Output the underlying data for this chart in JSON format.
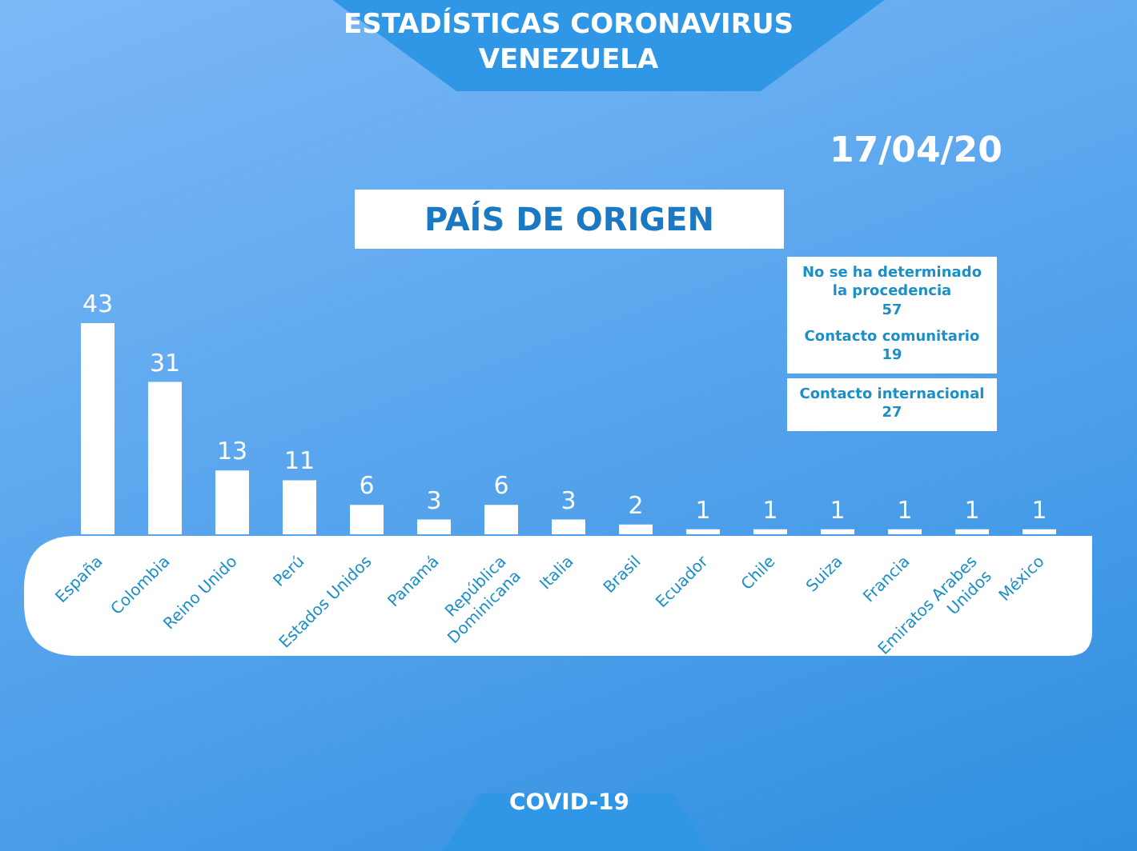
{
  "chart_data": {
    "type": "bar",
    "title": "ESTADÍSTICAS CORONAVIRUS\nVENEZUELA",
    "subtitle": "PAÍS DE ORIGEN",
    "categories": [
      "España",
      "Colombia",
      "Reino Unido",
      "Perú",
      "Estados Unidos",
      "Panamá",
      "República Dominicana",
      "Italia",
      "Brasil",
      "Ecuador",
      "Chile",
      "Suiza",
      "Francia",
      "Emiratos Arabes Unidos",
      "México"
    ],
    "values": [
      43,
      31,
      13,
      11,
      6,
      3,
      6,
      3,
      2,
      1,
      1,
      1,
      1,
      1,
      1
    ],
    "color": "#ffffff",
    "data_labels": true,
    "annotations": [
      "17/04/20",
      "No se ha determinado\nla procedencia\n57",
      "Contacto comunitario\n19",
      "Contacto internacional\n27",
      "COVID-19"
    ]
  }
}
